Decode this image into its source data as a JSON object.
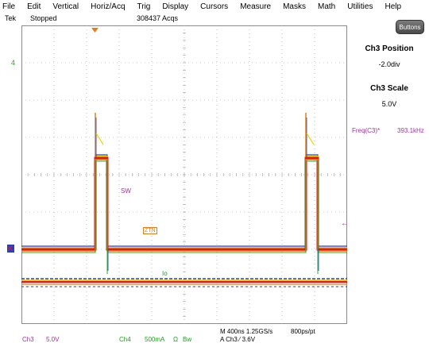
{
  "menu": [
    "File",
    "Edit",
    "Vertical",
    "Horiz/Acq",
    "Trig",
    "Display",
    "Cursors",
    "Measure",
    "Masks",
    "Math",
    "Utilities",
    "Help"
  ],
  "status": {
    "brand": "Tek",
    "run_state": "Stopped",
    "acqs": "308437 Acqs"
  },
  "side_panel": {
    "buttons_label": "Buttons",
    "position_title": "Ch3 Position",
    "position_value": "-2.0div",
    "scale_title": "Ch3 Scale",
    "scale_value": "5.0V"
  },
  "measurement": {
    "label": "Freq(C3)*",
    "value": "393.1kHz"
  },
  "waveform_labels": {
    "ch4_ref": "4",
    "sw": "SW",
    "ztn": "ZTN",
    "io": "Io",
    "ch3_ground_marker": "K"
  },
  "bottom": {
    "ch3_label": "Ch3",
    "ch3_scale": "5.0V",
    "ch4_label": "Ch4",
    "ch4_scale": "500mA",
    "ch4_coupling": "Ω",
    "ch4_bw": "Bw",
    "timebase": "M 400ns 1.25GS/s",
    "record": "800ps/pt",
    "trigger": "A  Ch3  ⁄  3.6V"
  },
  "colors": {
    "ch3": "#e0801a",
    "ch4": "#1a40d0",
    "persistence_red": "#e01a1a",
    "persistence_yellow": "#e8d800",
    "measurement": "#a030a0",
    "ref": "#2aa82a"
  }
}
